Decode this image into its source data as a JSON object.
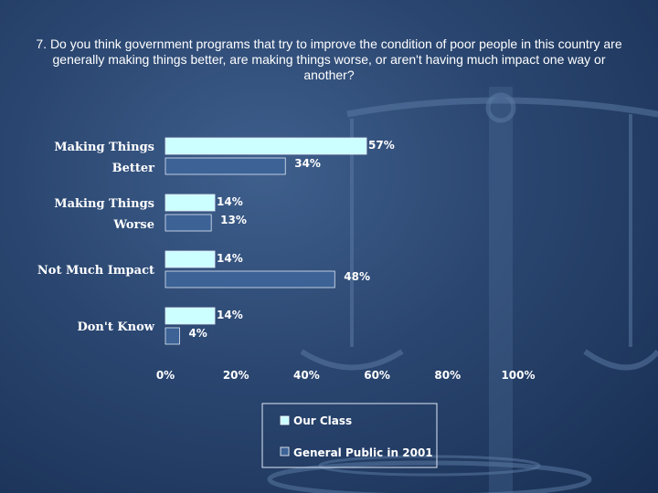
{
  "title": "7. Do you think government programs that try to improve the condition of poor people in this country are generally making things better, are making things worse, or aren't having much impact one way or another?",
  "colors": {
    "series1": "#ccffff",
    "series2": "#3c6296",
    "border": "#dfe8f5"
  },
  "chart_data": {
    "type": "bar",
    "orientation": "horizontal",
    "title": "7. Do you think government programs that try to improve the condition of poor people in this country are generally making things better, are making things worse, or aren't having much impact one way or another?",
    "categories": [
      [
        "Making Things",
        "Better"
      ],
      [
        "Making Things",
        "Worse"
      ],
      [
        "Not Much Impact"
      ],
      [
        "Don't Know"
      ]
    ],
    "series": [
      {
        "name": "Our Class",
        "values": [
          57,
          14,
          14,
          14
        ],
        "labels": [
          "57%",
          "14%",
          "14%",
          "14%"
        ]
      },
      {
        "name": "General Public in 2001",
        "values": [
          34,
          13,
          48,
          4
        ],
        "labels": [
          "34%",
          "13%",
          "48%",
          "4%"
        ]
      }
    ],
    "xlim": [
      0,
      100
    ],
    "xticks": [
      "0%",
      "20%",
      "40%",
      "60%",
      "80%",
      "100%"
    ],
    "grid": false,
    "legend": "bottom"
  }
}
